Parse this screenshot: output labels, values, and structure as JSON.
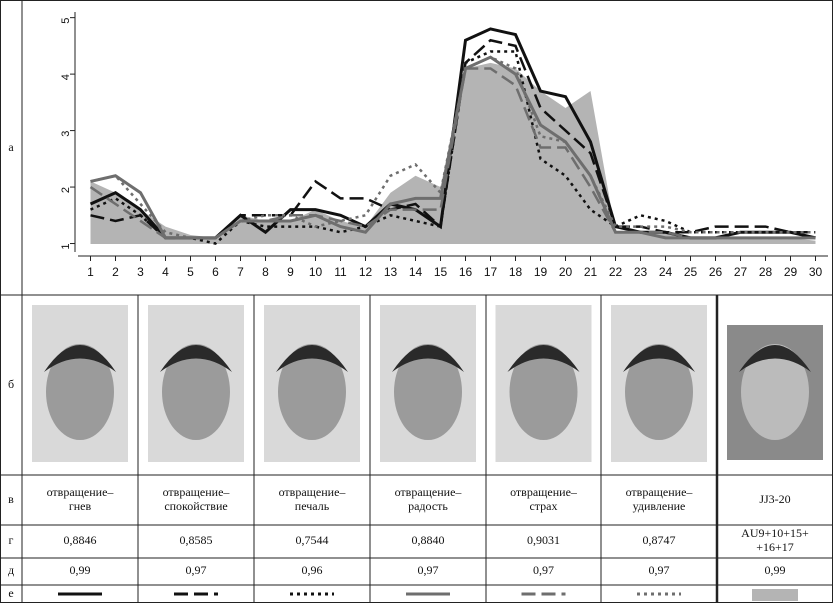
{
  "chart_data": {
    "type": "line",
    "x": [
      1,
      2,
      3,
      4,
      5,
      6,
      7,
      8,
      9,
      10,
      11,
      12,
      13,
      14,
      15,
      16,
      17,
      18,
      19,
      20,
      21,
      22,
      23,
      24,
      25,
      26,
      27,
      28,
      29,
      30
    ],
    "xlim": [
      0.5,
      30.5
    ],
    "xticks": [
      1,
      2,
      3,
      4,
      5,
      6,
      7,
      8,
      9,
      10,
      11,
      12,
      13,
      14,
      15,
      16,
      17,
      18,
      19,
      20,
      21,
      22,
      23,
      24,
      25,
      26,
      27,
      28,
      29,
      30
    ],
    "ylim": [
      0.85,
      5.1
    ],
    "yticks": [
      1,
      2,
      3,
      4,
      5
    ],
    "area": {
      "color": "#b4b4b4",
      "values": [
        2.1,
        1.9,
        1.6,
        1.3,
        1.15,
        1.1,
        1.5,
        1.4,
        1.4,
        1.6,
        1.4,
        1.3,
        1.9,
        2.2,
        2.0,
        4.1,
        4.2,
        4.1,
        3.7,
        3.4,
        3.7,
        1.2,
        1.2,
        1.2,
        1.1,
        1.1,
        1.1,
        1.1,
        1.1,
        1.05
      ]
    },
    "series": [
      {
        "color": "#111111",
        "style": "solid",
        "values": [
          1.7,
          1.9,
          1.6,
          1.1,
          1.1,
          1.1,
          1.5,
          1.2,
          1.6,
          1.6,
          1.5,
          1.3,
          1.7,
          1.6,
          1.3,
          4.6,
          4.8,
          4.7,
          3.7,
          3.6,
          2.8,
          1.3,
          1.2,
          1.2,
          1.1,
          1.1,
          1.2,
          1.2,
          1.2,
          1.1
        ]
      },
      {
        "color": "#111111",
        "style": "dash",
        "values": [
          1.5,
          1.4,
          1.5,
          1.1,
          1.1,
          1.1,
          1.5,
          1.5,
          1.5,
          2.1,
          1.8,
          1.8,
          1.6,
          1.7,
          1.3,
          4.2,
          4.6,
          4.5,
          3.4,
          3.0,
          2.6,
          1.3,
          1.3,
          1.2,
          1.2,
          1.3,
          1.3,
          1.3,
          1.2,
          1.2
        ]
      },
      {
        "color": "#111111",
        "style": "dot",
        "values": [
          1.6,
          1.8,
          1.5,
          1.1,
          1.1,
          1.0,
          1.4,
          1.3,
          1.3,
          1.3,
          1.2,
          1.3,
          1.5,
          1.4,
          1.3,
          4.2,
          4.4,
          4.4,
          2.5,
          2.2,
          1.6,
          1.3,
          1.5,
          1.4,
          1.2,
          1.2,
          1.2,
          1.2,
          1.2,
          1.1
        ]
      },
      {
        "color": "#6e6e6e",
        "style": "solid",
        "values": [
          2.1,
          2.2,
          1.9,
          1.1,
          1.1,
          1.1,
          1.4,
          1.4,
          1.4,
          1.5,
          1.3,
          1.2,
          1.7,
          1.8,
          1.8,
          4.1,
          4.3,
          4.0,
          3.1,
          2.8,
          2.2,
          1.2,
          1.2,
          1.1,
          1.1,
          1.1,
          1.1,
          1.1,
          1.1,
          1.1
        ]
      },
      {
        "color": "#6e6e6e",
        "style": "dash",
        "values": [
          2.0,
          1.7,
          1.4,
          1.1,
          1.1,
          1.1,
          1.4,
          1.4,
          1.5,
          1.5,
          1.4,
          1.3,
          1.6,
          1.6,
          1.6,
          4.1,
          4.1,
          3.8,
          2.7,
          2.7,
          2.0,
          1.2,
          1.2,
          1.2,
          1.1,
          1.1,
          1.1,
          1.1,
          1.1,
          1.1
        ]
      },
      {
        "color": "#6e6e6e",
        "style": "dot",
        "values": [
          2.1,
          2.2,
          1.7,
          1.2,
          1.1,
          1.1,
          1.4,
          1.5,
          1.5,
          1.3,
          1.4,
          1.5,
          2.2,
          2.4,
          1.9,
          4.1,
          4.3,
          4.1,
          2.9,
          2.8,
          2.2,
          1.3,
          1.3,
          1.3,
          1.2,
          1.2,
          1.2,
          1.2,
          1.2,
          1.2
        ]
      }
    ]
  },
  "table": {
    "row_labels": [
      "а",
      "б",
      "в",
      "г",
      "д",
      "е"
    ],
    "names": [
      "отвращение–\nгнев",
      "отвращение–\nспокойствие",
      "отвращение–\nпечаль",
      "отвращение–\nрадость",
      "отвращение–\nстрах",
      "отвращение–\nудивление",
      "JJ3-20"
    ],
    "row_g": [
      "0,8846",
      "0,8585",
      "0,7544",
      "0,8840",
      "0,9031",
      "0,8747",
      "AU9+10+15+\n+16+17"
    ],
    "row_d": [
      "0,99",
      "0,97",
      "0,96",
      "0,97",
      "0,97",
      "0,97",
      "0,99"
    ]
  }
}
